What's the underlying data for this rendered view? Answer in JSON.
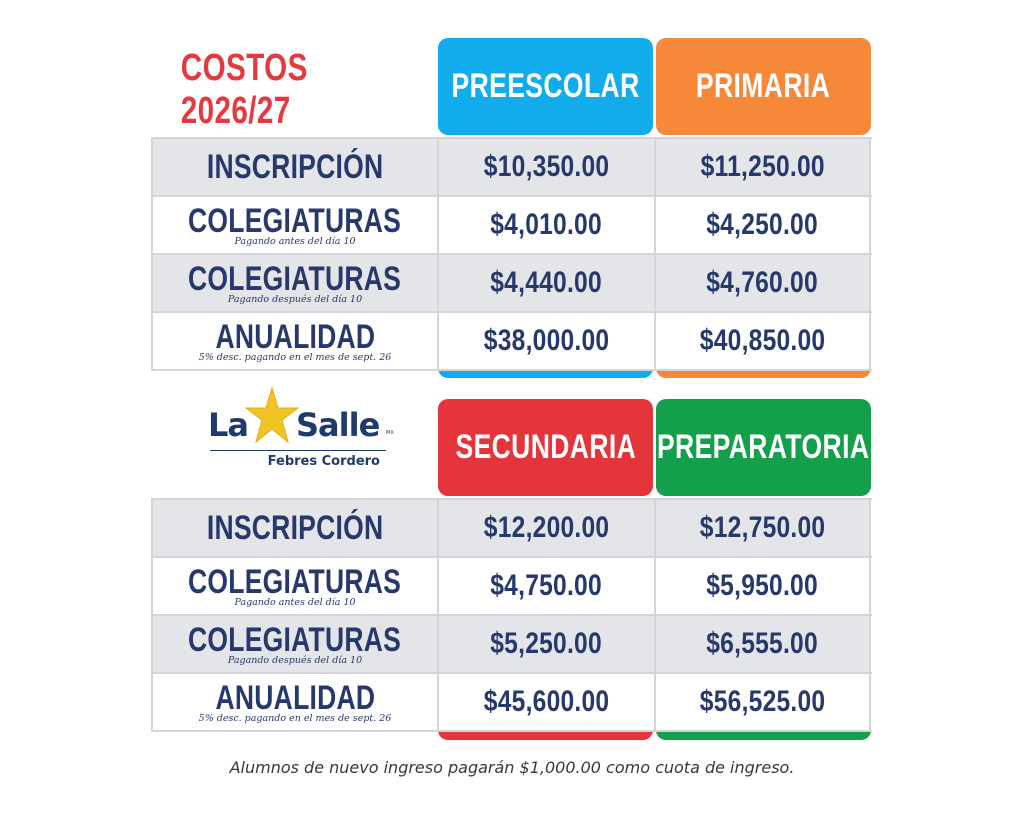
{
  "title": "COSTOS 2026/27",
  "logo": {
    "name_part1": "La",
    "name_part2": "Salle",
    "mark": "MX",
    "subtitle": "Febres Cordero",
    "icon": "star-icon"
  },
  "colors": {
    "preescolar": "#12aced",
    "primaria": "#f6883a",
    "secundaria": "#e4343c",
    "preparatoria": "#14a04a",
    "text": "#27396c",
    "title": "#e43a3f"
  },
  "top_table": {
    "columns": [
      "PREESCOLAR",
      "PRIMARIA"
    ],
    "rows": [
      {
        "label": "INSCRIPCIÓN",
        "sub": "",
        "values": [
          "$10,350.00",
          "$11,250.00"
        ]
      },
      {
        "label": "COLEGIATURAS",
        "sub": "Pagando antes del día 10",
        "values": [
          "$4,010.00",
          "$4,250.00"
        ]
      },
      {
        "label": "COLEGIATURAS",
        "sub": "Pagando después del día 10",
        "values": [
          "$4,440.00",
          "$4,760.00"
        ]
      },
      {
        "label": "ANUALIDAD",
        "sub": "5% desc. pagando en el mes de sept. 26",
        "values": [
          "$38,000.00",
          "$40,850.00"
        ]
      }
    ]
  },
  "bottom_table": {
    "columns": [
      "SECUNDARIA",
      "PREPARATORIA"
    ],
    "rows": [
      {
        "label": "INSCRIPCIÓN",
        "sub": "",
        "values": [
          "$12,200.00",
          "$12,750.00"
        ]
      },
      {
        "label": "COLEGIATURAS",
        "sub": "Pagando antes del día 10",
        "values": [
          "$4,750.00",
          "$5,950.00"
        ]
      },
      {
        "label": "COLEGIATURAS",
        "sub": "Pagando después del día 10",
        "values": [
          "$5,250.00",
          "$6,555.00"
        ]
      },
      {
        "label": "ANUALIDAD",
        "sub": "5% desc. pagando en el mes de sept. 26",
        "values": [
          "$45,600.00",
          "$56,525.00"
        ]
      }
    ]
  },
  "footer": "Alumnos de nuevo ingreso pagarán $1,000.00 como cuota de ingreso."
}
